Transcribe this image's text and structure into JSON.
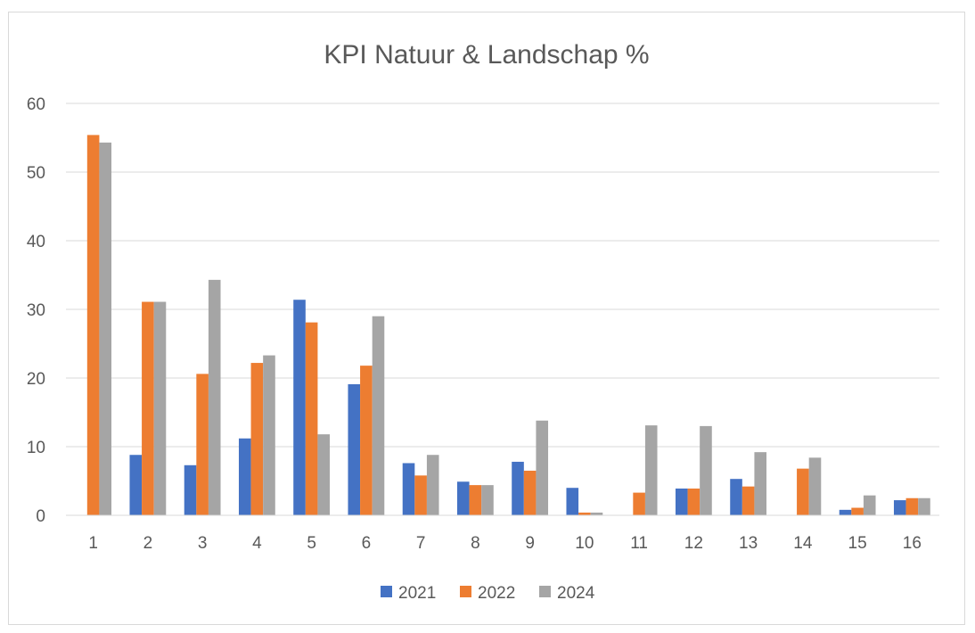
{
  "chart_data": {
    "type": "bar",
    "title": "KPI Natuur & Landschap %",
    "xlabel": "",
    "ylabel": "",
    "ylim": [
      0,
      60
    ],
    "yticks": [
      0,
      10,
      20,
      30,
      40,
      50,
      60
    ],
    "grid": true,
    "legend_position": "bottom",
    "categories": [
      "1",
      "2",
      "3",
      "4",
      "5",
      "6",
      "7",
      "8",
      "9",
      "10",
      "11",
      "12",
      "13",
      "14",
      "15",
      "16"
    ],
    "series": [
      {
        "name": "2021",
        "color": "#4472c4",
        "values": [
          0,
          8.8,
          7.3,
          11.2,
          31.4,
          19.1,
          7.6,
          4.9,
          7.8,
          4.0,
          0,
          3.9,
          5.3,
          0,
          0.8,
          2.2
        ]
      },
      {
        "name": "2022",
        "color": "#ed7d31",
        "values": [
          55.4,
          31.1,
          20.6,
          22.2,
          28.1,
          21.8,
          5.8,
          4.4,
          6.5,
          0.4,
          3.3,
          3.9,
          4.2,
          6.8,
          1.1,
          2.5
        ]
      },
      {
        "name": "2024",
        "color": "#a5a5a5",
        "values": [
          54.3,
          31.1,
          34.3,
          23.3,
          11.8,
          29.0,
          8.8,
          4.4,
          13.8,
          0.4,
          13.1,
          13.0,
          9.2,
          8.4,
          2.9,
          2.5
        ]
      }
    ]
  }
}
